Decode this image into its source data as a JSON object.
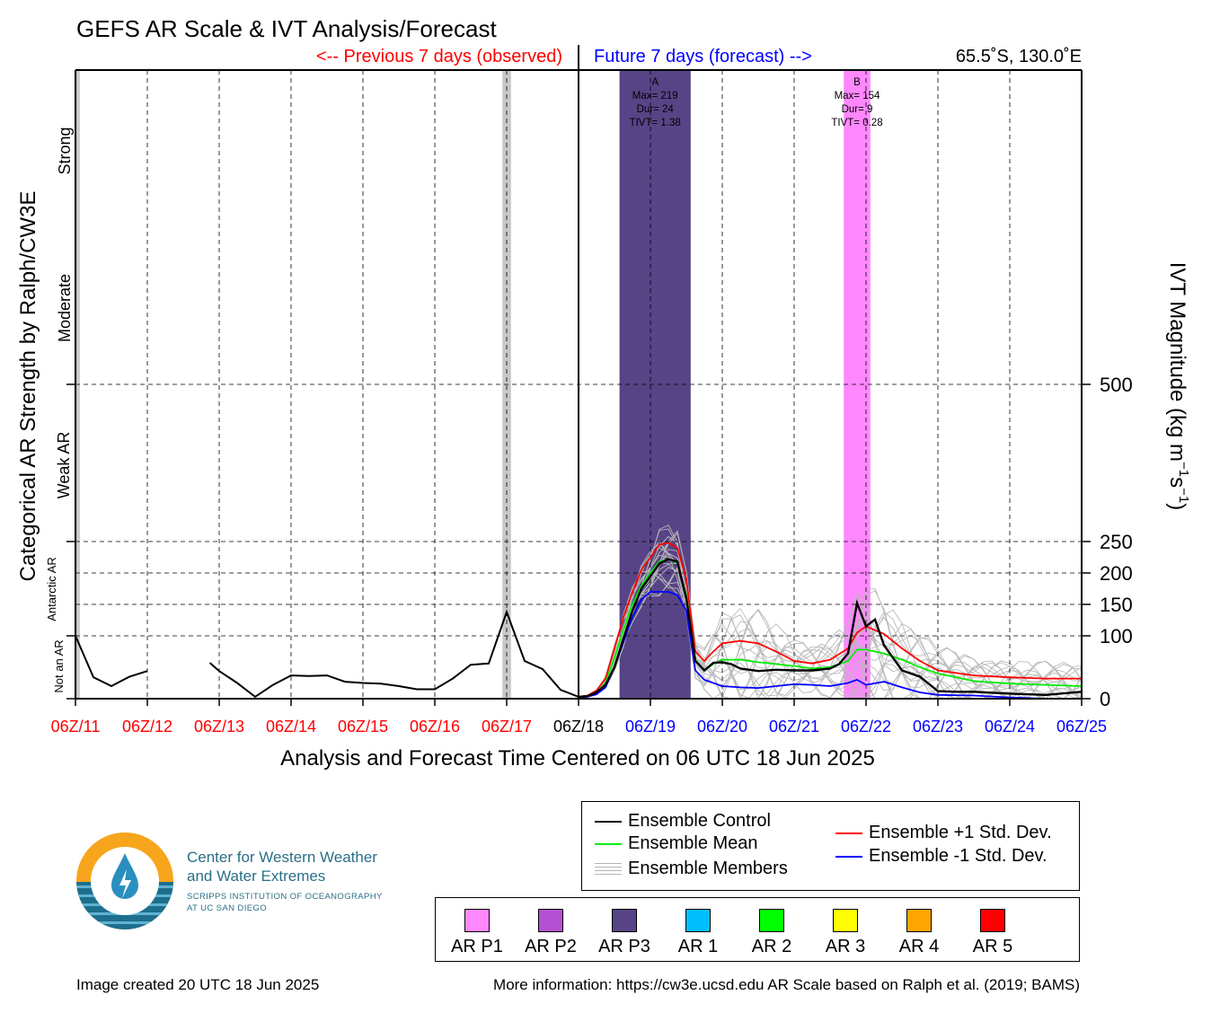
{
  "title": "GEFS AR Scale & IVT Analysis/Forecast",
  "prev_label": "<-- Previous 7 days (observed)",
  "future_label": "Future 7 days (forecast) -->",
  "location": "65.5˚S, 130.0˚E",
  "xlabel": "Analysis and Forecast Time Centered on 06 UTC 18 Jun 2025",
  "ylabel_left": "Categorical AR Strength by Ralph/CW3E",
  "ylabel_right_main": "IVT Magnitude (kg m",
  "ylabel_right_sup1": "−1",
  "ylabel_right_mid": "s",
  "ylabel_right_sup2": "−1",
  "ylabel_right_end": ")",
  "category_labels": [
    "Not an AR",
    "Antarctic AR",
    "Weak AR",
    "Moderate",
    "Strong"
  ],
  "legend": {
    "control": "Ensemble Control",
    "mean": "Ensemble Mean",
    "members": "Ensemble Members",
    "plus": "Ensemble +1 Std. Dev.",
    "minus": "Ensemble -1 Std. Dev."
  },
  "categories": [
    {
      "label": "AR P1",
      "color": "#ff88ff"
    },
    {
      "label": "AR P2",
      "color": "#b44fd2"
    },
    {
      "label": "AR P3",
      "color": "#574486"
    },
    {
      "label": "AR 1",
      "color": "#00bfff"
    },
    {
      "label": "AR 2",
      "color": "#00ff00"
    },
    {
      "label": "AR 3",
      "color": "#ffff00"
    },
    {
      "label": "AR 4",
      "color": "#ffa500"
    },
    {
      "label": "AR 5",
      "color": "#ff0000"
    }
  ],
  "logo": {
    "line1": "Center for Western Weather",
    "line2": "and Water Extremes",
    "line3": "SCRIPPS INSTITUTION OF OCEANOGRAPHY",
    "line4": "AT UC SAN DIEGO"
  },
  "footer_left": "Image created 20 UTC 18 Jun 2025",
  "footer_right": "More information: https://cw3e.ucsd.edu AR Scale based on Ralph et al. (2019; BAMS)",
  "chart_data": {
    "type": "line",
    "x_unit": "days from 06Z/11",
    "xlim": [
      0,
      14
    ],
    "ylim": [
      0,
      1000
    ],
    "x_ticks": [
      {
        "x": 0,
        "label": "06Z/11",
        "color": "#ff0000"
      },
      {
        "x": 1,
        "label": "06Z/12",
        "color": "#ff0000"
      },
      {
        "x": 2,
        "label": "06Z/13",
        "color": "#ff0000"
      },
      {
        "x": 3,
        "label": "06Z/14",
        "color": "#ff0000"
      },
      {
        "x": 4,
        "label": "06Z/15",
        "color": "#ff0000"
      },
      {
        "x": 5,
        "label": "06Z/16",
        "color": "#ff0000"
      },
      {
        "x": 6,
        "label": "06Z/17",
        "color": "#ff0000"
      },
      {
        "x": 7,
        "label": "06Z/18",
        "color": "#000000"
      },
      {
        "x": 8,
        "label": "06Z/19",
        "color": "#0000ff"
      },
      {
        "x": 9,
        "label": "06Z/20",
        "color": "#0000ff"
      },
      {
        "x": 10,
        "label": "06Z/21",
        "color": "#0000ff"
      },
      {
        "x": 11,
        "label": "06Z/22",
        "color": "#0000ff"
      },
      {
        "x": 12,
        "label": "06Z/23",
        "color": "#0000ff"
      },
      {
        "x": 13,
        "label": "06Z/24",
        "color": "#0000ff"
      },
      {
        "x": 14,
        "label": "06Z/25",
        "color": "#0000ff"
      }
    ],
    "y_ticks": [
      0,
      100,
      150,
      200,
      250,
      500
    ],
    "y_grid": [
      100,
      150,
      200,
      250,
      500
    ],
    "ar_events": [
      {
        "x0": 7.57,
        "x1": 8.56,
        "color": "#574486",
        "label": "A",
        "max": "Max= 219",
        "dur": "Dur= 24",
        "tivt": "TIVT= 1.38"
      },
      {
        "x0": 10.69,
        "x1": 11.06,
        "color": "#ff88ff",
        "label": "B",
        "max": "Max= 154",
        "dur": "Dur= 9",
        "tivt": "TIVT= 0.28"
      }
    ],
    "observed_marks": [
      {
        "x0": 0.0,
        "x1": 0.06,
        "color": "#c8c8c8"
      },
      {
        "x0": 5.94,
        "x1": 6.06,
        "color": "#c8c8c8"
      }
    ],
    "observed": [
      {
        "x": [
          0,
          0.25,
          0.5,
          0.75,
          1.0
        ],
        "y": [
          100,
          34,
          20,
          35,
          44
        ]
      },
      {
        "x": [
          1.87,
          2.0,
          2.25,
          2.5,
          2.75,
          3.0,
          3.25,
          3.5,
          3.75,
          4.0,
          4.25,
          4.5,
          4.75,
          5.0,
          5.25,
          5.5,
          5.75,
          6.0,
          6.25,
          6.5,
          6.75,
          7.0
        ],
        "y": [
          57,
          44,
          25,
          3,
          22,
          37,
          36,
          37,
          27,
          25,
          24,
          20,
          15,
          15,
          32,
          54,
          56,
          138,
          60,
          47,
          14,
          3
        ]
      }
    ],
    "series": [
      {
        "name": "Ensemble Control",
        "color": "#000000",
        "x": [
          7.0,
          7.125,
          7.25,
          7.375,
          7.5,
          7.625,
          7.75,
          7.875,
          8.0,
          8.125,
          8.25,
          8.375,
          8.5,
          8.625,
          8.75,
          8.875,
          9.0,
          9.125,
          9.25,
          9.5,
          9.75,
          10.0,
          10.25,
          10.5,
          10.625,
          10.75,
          10.875,
          11.0,
          11.125,
          11.25,
          11.5,
          11.75,
          12.0,
          12.25,
          12.5,
          13.0,
          13.5,
          14.0
        ],
        "y": [
          3,
          4,
          10,
          22,
          50,
          95,
          140,
          175,
          195,
          215,
          222,
          218,
          160,
          60,
          45,
          57,
          58,
          55,
          48,
          44,
          46,
          45,
          45,
          48,
          55,
          72,
          152,
          115,
          126,
          85,
          45,
          35,
          12,
          11,
          11,
          8,
          6,
          11
        ]
      },
      {
        "name": "Ensemble Mean",
        "color": "#00ff00",
        "x": [
          7.0,
          7.125,
          7.25,
          7.375,
          7.5,
          7.625,
          7.75,
          7.875,
          8.0,
          8.125,
          8.25,
          8.375,
          8.5,
          8.625,
          8.75,
          8.875,
          9.0,
          9.25,
          9.5,
          9.75,
          10.0,
          10.25,
          10.5,
          10.75,
          10.875,
          11.0,
          11.25,
          11.5,
          11.75,
          12.0,
          12.5,
          13.0,
          13.5,
          14.0
        ],
        "y": [
          3,
          4,
          10,
          25,
          65,
          110,
          150,
          180,
          200,
          218,
          222,
          216,
          165,
          62,
          45,
          55,
          62,
          62,
          58,
          55,
          52,
          48,
          50,
          60,
          78,
          78,
          72,
          62,
          50,
          40,
          28,
          24,
          22,
          20
        ]
      },
      {
        "name": "Ensemble +1 Std. Dev.",
        "color": "#ff0000",
        "x": [
          7.0,
          7.125,
          7.25,
          7.375,
          7.5,
          7.625,
          7.75,
          7.875,
          8.0,
          8.125,
          8.25,
          8.375,
          8.5,
          8.625,
          8.75,
          8.875,
          9.0,
          9.25,
          9.5,
          9.75,
          10.0,
          10.25,
          10.5,
          10.75,
          10.875,
          11.0,
          11.25,
          11.5,
          11.75,
          12.0,
          12.5,
          13.0,
          13.5,
          14.0
        ],
        "y": [
          3,
          5,
          13,
          32,
          80,
          130,
          170,
          205,
          225,
          245,
          248,
          240,
          190,
          75,
          60,
          75,
          88,
          92,
          88,
          75,
          60,
          56,
          62,
          80,
          105,
          115,
          103,
          80,
          60,
          45,
          37,
          34,
          32,
          32
        ]
      },
      {
        "name": "Ensemble -1 Std. Dev.",
        "color": "#0000ff",
        "x": [
          7.0,
          7.125,
          7.25,
          7.375,
          7.5,
          7.625,
          7.75,
          7.875,
          8.0,
          8.125,
          8.25,
          8.375,
          8.5,
          8.625,
          8.75,
          8.875,
          9.0,
          9.25,
          9.5,
          9.75,
          10.0,
          10.25,
          10.5,
          10.75,
          10.875,
          11.0,
          11.25,
          11.5,
          11.75,
          12.0,
          12.5,
          13.0,
          13.5,
          14.0
        ],
        "y": [
          2,
          3,
          7,
          18,
          50,
          90,
          130,
          158,
          170,
          170,
          170,
          165,
          140,
          45,
          30,
          25,
          20,
          18,
          17,
          20,
          23,
          22,
          20,
          25,
          30,
          22,
          27,
          18,
          10,
          6,
          5,
          2,
          0,
          0
        ]
      }
    ]
  }
}
